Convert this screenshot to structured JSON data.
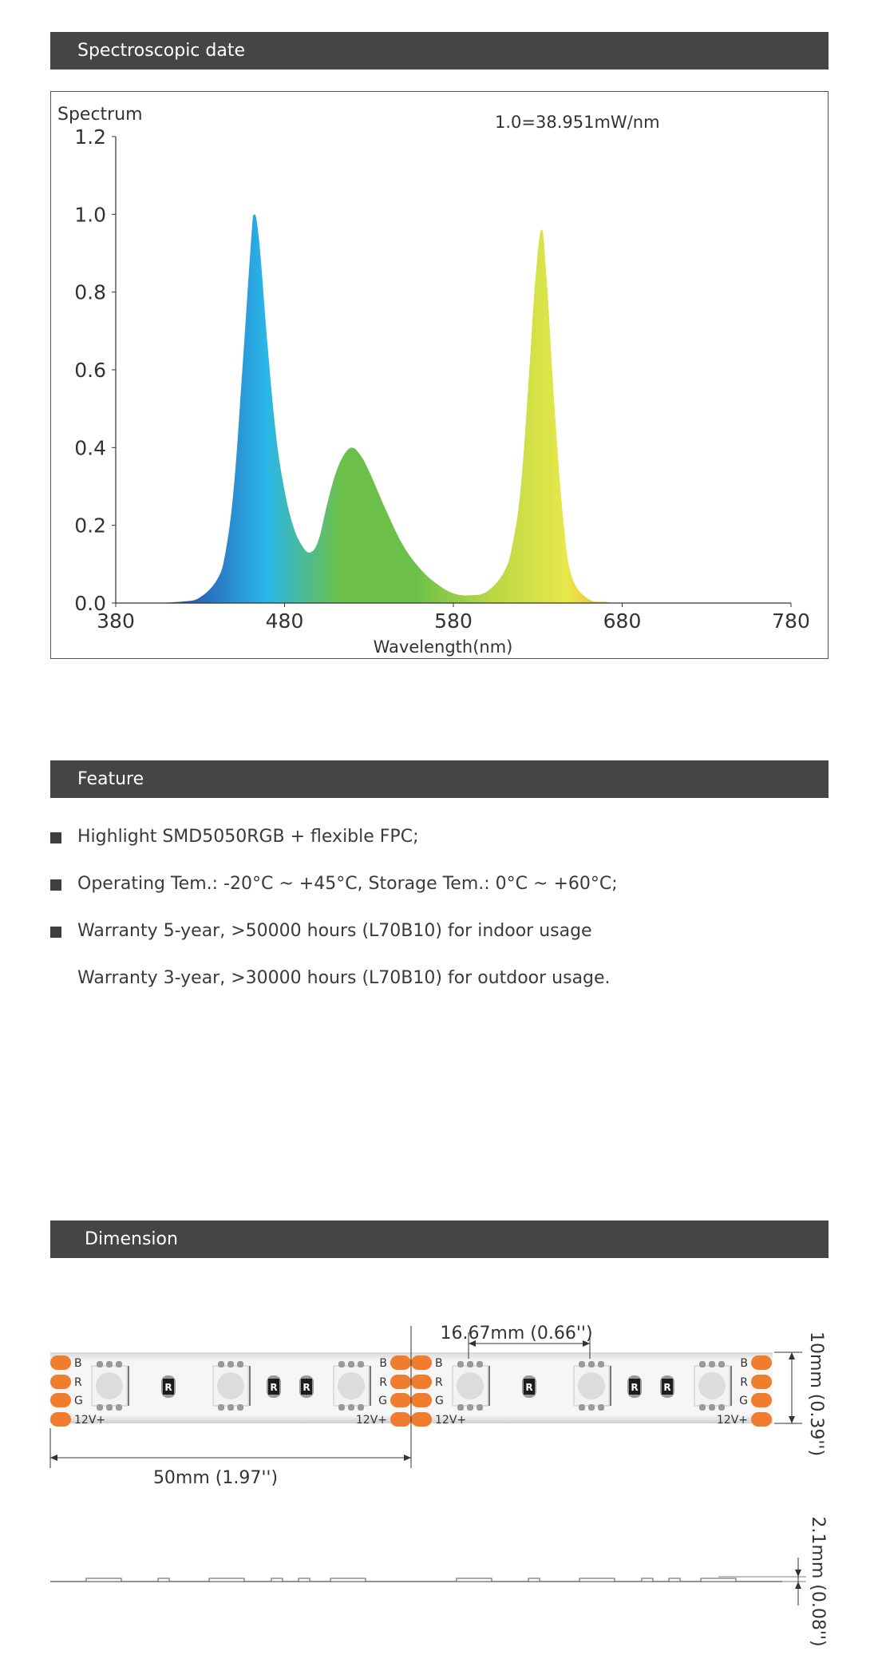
{
  "spectrum_section": {
    "title": "Spectroscopic date"
  },
  "chart_data": {
    "type": "area",
    "title": "",
    "ylabel": "Spectrum",
    "xlabel": "Wavelength(nm)",
    "annotation": "1.0=38.951mW/nm",
    "xlim": [
      380,
      780
    ],
    "ylim": [
      0,
      1.2
    ],
    "x_ticks": [
      "380",
      "480",
      "580",
      "680",
      "780"
    ],
    "y_ticks": [
      "0.0",
      "0.2",
      "0.4",
      "0.6",
      "0.8",
      "1.0",
      "1.2"
    ],
    "grid": false,
    "series": [
      {
        "x": [
          380,
          400,
          420,
          430,
          440,
          445,
          450,
          455,
          460,
          462,
          465,
          470,
          475,
          480,
          485,
          490,
          495,
          500,
          505,
          510,
          515,
          520,
          525,
          530,
          540,
          550,
          560,
          570,
          580,
          590,
          600,
          610,
          615,
          620,
          625,
          628,
          632,
          635,
          640,
          645,
          650,
          660,
          670,
          680,
          700,
          720,
          740,
          760,
          780
        ],
        "values": [
          0,
          0,
          0.004,
          0.015,
          0.06,
          0.13,
          0.3,
          0.6,
          0.92,
          1.0,
          0.93,
          0.66,
          0.43,
          0.29,
          0.2,
          0.15,
          0.13,
          0.16,
          0.25,
          0.33,
          0.38,
          0.4,
          0.38,
          0.34,
          0.24,
          0.15,
          0.09,
          0.05,
          0.025,
          0.02,
          0.03,
          0.08,
          0.15,
          0.3,
          0.6,
          0.8,
          0.96,
          0.85,
          0.5,
          0.22,
          0.07,
          0.01,
          0.003,
          0,
          0,
          0,
          0,
          0,
          0
        ]
      }
    ],
    "gradient_colors": [
      "#1f3f9e",
      "#2a5bb5",
      "#29b6e8",
      "#6cc04a",
      "#6cc04a",
      "#b8d844",
      "#e8e84a",
      "#f09030",
      "#e8352d",
      "#c8202a"
    ]
  },
  "feature_section": {
    "title": "Feature",
    "items": [
      "Highlight SMD5050RGB + flexible FPC;",
      "Operating Tem.: -20°C ~ +45°C, Storage Tem.: 0°C ~ +60°C;",
      "Warranty 5-year, >50000 hours (L70B10) for indoor usage"
    ],
    "extra_line": "Warranty 3-year, >30000 hours (L70B10) for outdoor usage."
  },
  "dimension_section": {
    "title": "Dimension",
    "pitch_label": "16.67mm (0.66'')",
    "cut_length_label": "50mm (1.97'')",
    "width_label": "10mm (0.39'')",
    "thickness_label": "2.1mm (0.08'')",
    "pad_labels": [
      "B",
      "R",
      "G",
      "12V+"
    ],
    "resistor_label": "R",
    "pad_color": "#f07d2d"
  }
}
